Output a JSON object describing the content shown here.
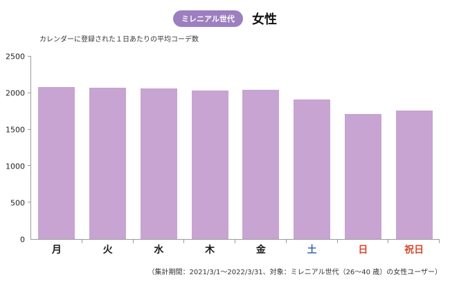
{
  "header": {
    "badge": "ミレニアル世代",
    "title": "女性"
  },
  "chart_data": {
    "type": "bar",
    "title": "カレンダーに登録された１日あたりの平均コーデ数",
    "categories": [
      "月",
      "火",
      "水",
      "木",
      "金",
      "土",
      "日",
      "祝日"
    ],
    "values": [
      2080,
      2075,
      2065,
      2040,
      2050,
      1915,
      1710,
      1760
    ],
    "category_colors": [
      "#1a1a1a",
      "#1a1a1a",
      "#1a1a1a",
      "#1a1a1a",
      "#1a1a1a",
      "#3b67ad",
      "#d8482f",
      "#d8482f"
    ],
    "bar_color": "#c7a4d1",
    "xlabel": "",
    "ylabel": "",
    "ylim": [
      0,
      2500
    ],
    "yticks": [
      0,
      500,
      1000,
      1500,
      2000,
      2500
    ],
    "grid": false,
    "legend": "none"
  },
  "footer": {
    "note": "（集計期間：2021/3/1〜2022/3/31、対象：ミレニアル世代（26〜40 歳）の女性ユーザー）"
  }
}
